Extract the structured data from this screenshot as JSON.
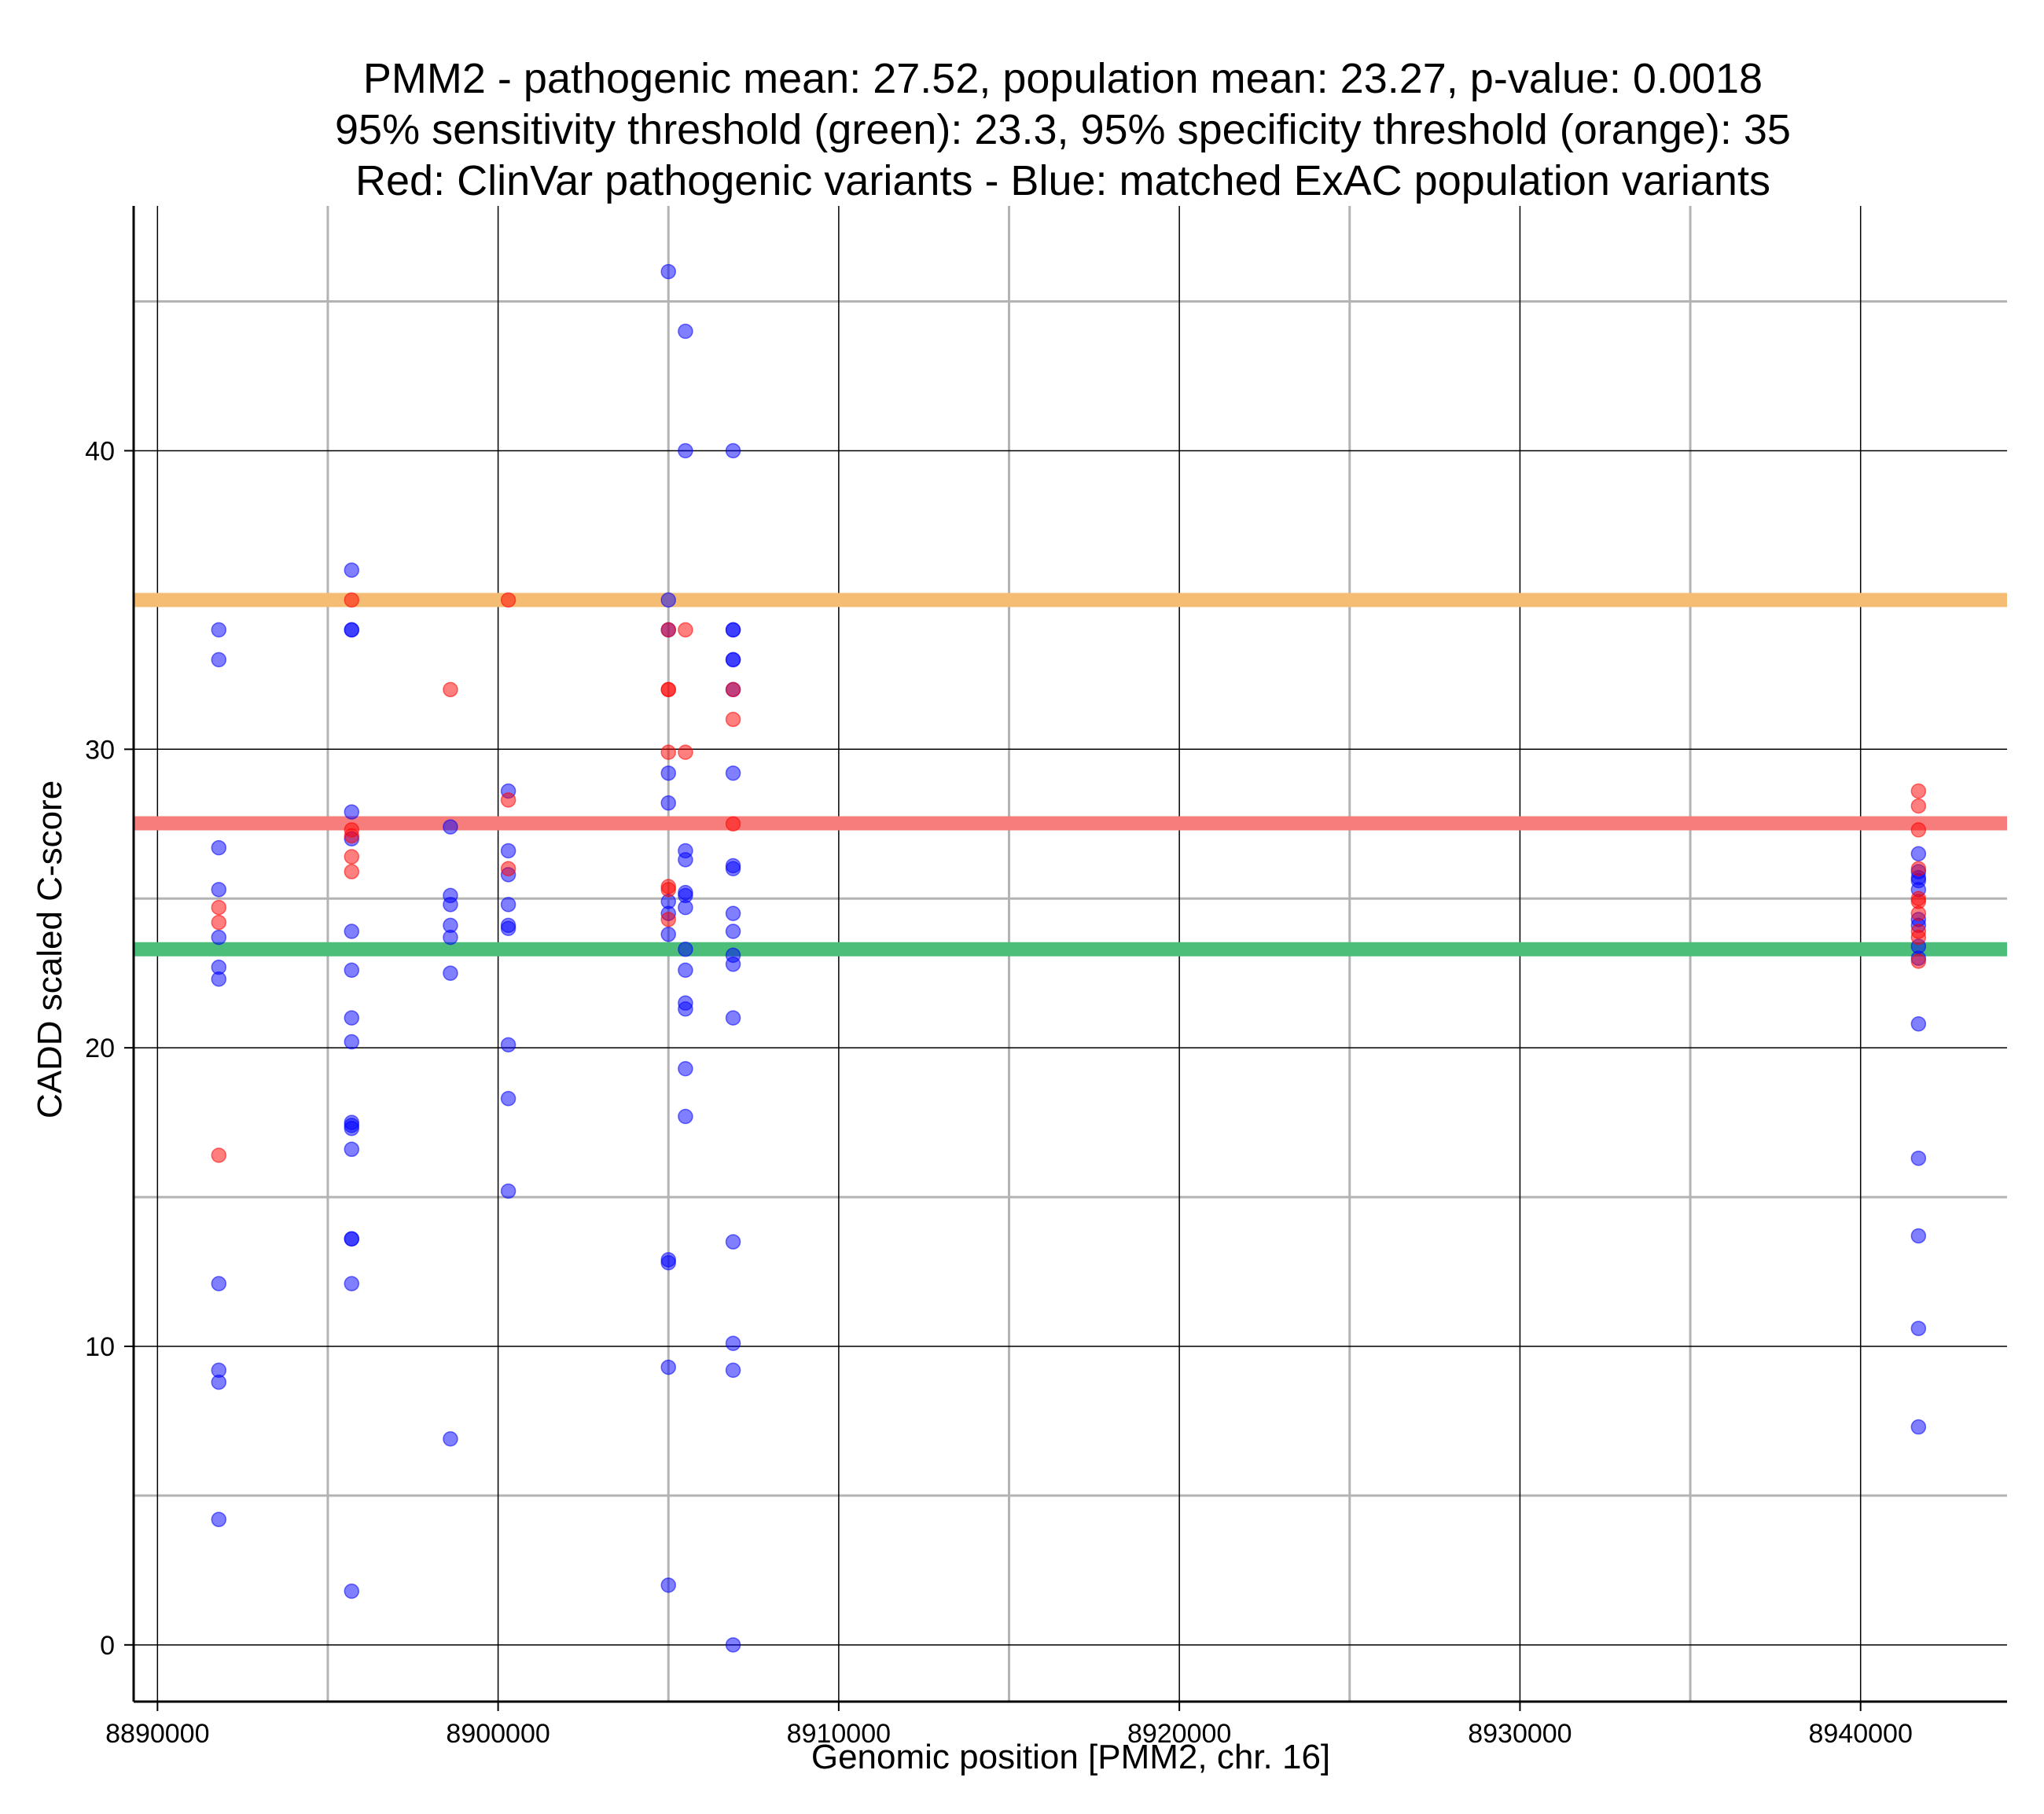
{
  "chart_data": {
    "type": "scatter",
    "title": [
      "PMM2 - pathogenic mean: 27.52, population mean: 23.27, p-value: 0.0018",
      "95% sensitivity threshold (green): 23.3, 95% specificity threshold (orange): 35",
      "Red: ClinVar pathogenic variants - Blue: matched ExAC population variants"
    ],
    "xlabel": "Genomic position [PMM2, chr. 16]",
    "ylabel": "CADD scaled C-score",
    "xlim": [
      8889300,
      8944300
    ],
    "ylim": [
      -1.9,
      48.2
    ],
    "x_ticks": [
      8890000,
      8900000,
      8910000,
      8920000,
      8930000,
      8940000
    ],
    "y_ticks": [
      0,
      10,
      20,
      30,
      40
    ],
    "x_minor_gridlines": [
      8895000,
      8905000,
      8915000,
      8925000,
      8935000
    ],
    "y_minor_gridlines": [
      5,
      15,
      25,
      35,
      45
    ],
    "grid": true,
    "colors": {
      "pathogenic": "#ff0000",
      "population": "#0000ff",
      "sensitivity_line": "#4dbd7a",
      "specificity_line": "#f5bd73",
      "pathogenic_mean_line": "#f77c7c"
    },
    "hlines": [
      {
        "name": "95% specificity threshold",
        "y": 35,
        "color": "#f5bd73"
      },
      {
        "name": "pathogenic mean",
        "y": 27.52,
        "color": "#f77c7c"
      },
      {
        "name": "95% sensitivity threshold",
        "y": 23.3,
        "color": "#4dbd7a"
      }
    ],
    "series": [
      {
        "color": "#0000ff",
        "points": [
          [
            8891800,
            34
          ],
          [
            8891800,
            33
          ],
          [
            8891800,
            26.7
          ],
          [
            8891800,
            25.3
          ],
          [
            8891800,
            23.7
          ],
          [
            8891800,
            22.7
          ],
          [
            8891800,
            22.3
          ],
          [
            8891800,
            12.1
          ],
          [
            8891800,
            9.2
          ],
          [
            8891800,
            8.8
          ],
          [
            8891800,
            4.2
          ],
          [
            8895700,
            36
          ],
          [
            8895700,
            34
          ],
          [
            8895700,
            34
          ],
          [
            8895700,
            27.9
          ],
          [
            8895700,
            27
          ],
          [
            8895700,
            23.9
          ],
          [
            8895700,
            22.6
          ],
          [
            8895700,
            21
          ],
          [
            8895700,
            20.2
          ],
          [
            8895700,
            17.5
          ],
          [
            8895700,
            17.3
          ],
          [
            8895700,
            17.4
          ],
          [
            8895700,
            16.6
          ],
          [
            8895700,
            13.6
          ],
          [
            8895700,
            13.6
          ],
          [
            8895700,
            12.1
          ],
          [
            8895700,
            1.8
          ],
          [
            8898600,
            27.4
          ],
          [
            8898600,
            25.1
          ],
          [
            8898600,
            24.8
          ],
          [
            8898600,
            24.1
          ],
          [
            8898600,
            23.7
          ],
          [
            8898600,
            22.5
          ],
          [
            8898600,
            6.9
          ],
          [
            8900300,
            28.6
          ],
          [
            8900300,
            26.6
          ],
          [
            8900300,
            25.8
          ],
          [
            8900300,
            24.8
          ],
          [
            8900300,
            24.1
          ],
          [
            8900300,
            24
          ],
          [
            8900300,
            20.1
          ],
          [
            8900300,
            18.3
          ],
          [
            8900300,
            15.2
          ],
          [
            8905000,
            46
          ],
          [
            8905000,
            35
          ],
          [
            8905000,
            34
          ],
          [
            8905000,
            29.2
          ],
          [
            8905000,
            28.2
          ],
          [
            8905000,
            24.9
          ],
          [
            8905000,
            24.5
          ],
          [
            8905000,
            23.8
          ],
          [
            8905000,
            12.9
          ],
          [
            8905000,
            12.8
          ],
          [
            8905000,
            9.3
          ],
          [
            8905000,
            2
          ],
          [
            8905500,
            44
          ],
          [
            8905500,
            40
          ],
          [
            8905500,
            26.6
          ],
          [
            8905500,
            26.3
          ],
          [
            8905500,
            25.2
          ],
          [
            8905500,
            25.1
          ],
          [
            8905500,
            24.7
          ],
          [
            8905500,
            23.3
          ],
          [
            8905500,
            22.6
          ],
          [
            8905500,
            21.5
          ],
          [
            8905500,
            21.3
          ],
          [
            8905500,
            19.3
          ],
          [
            8905500,
            17.7
          ],
          [
            8906900,
            40
          ],
          [
            8906900,
            34
          ],
          [
            8906900,
            34
          ],
          [
            8906900,
            33
          ],
          [
            8906900,
            33
          ],
          [
            8906900,
            32
          ],
          [
            8906900,
            29.2
          ],
          [
            8906900,
            26.1
          ],
          [
            8906900,
            26
          ],
          [
            8906900,
            24.5
          ],
          [
            8906900,
            23.9
          ],
          [
            8906900,
            23.1
          ],
          [
            8906900,
            22.8
          ],
          [
            8906900,
            21
          ],
          [
            8906900,
            13.5
          ],
          [
            8906900,
            10.1
          ],
          [
            8906900,
            9.2
          ],
          [
            8906900,
            0
          ],
          [
            8941700,
            26.5
          ],
          [
            8941700,
            25.9
          ],
          [
            8941700,
            25.7
          ],
          [
            8941700,
            25.6
          ],
          [
            8941700,
            25.3
          ],
          [
            8941700,
            24.3
          ],
          [
            8941700,
            24.1
          ],
          [
            8941700,
            23.4
          ],
          [
            8941700,
            23
          ],
          [
            8941700,
            20.8
          ],
          [
            8941700,
            16.3
          ],
          [
            8941700,
            13.7
          ],
          [
            8941700,
            10.6
          ],
          [
            8941700,
            7.3
          ]
        ]
      },
      {
        "color": "#ff0000",
        "points": [
          [
            8891800,
            24.7
          ],
          [
            8891800,
            24.2
          ],
          [
            8891800,
            16.4
          ],
          [
            8895700,
            35
          ],
          [
            8895700,
            27.3
          ],
          [
            8895700,
            27.1
          ],
          [
            8895700,
            26.4
          ],
          [
            8895700,
            25.9
          ],
          [
            8898600,
            32
          ],
          [
            8900300,
            35
          ],
          [
            8900300,
            28.3
          ],
          [
            8900300,
            26
          ],
          [
            8905000,
            34
          ],
          [
            8905000,
            32
          ],
          [
            8905000,
            32
          ],
          [
            8905000,
            29.9
          ],
          [
            8905000,
            25.4
          ],
          [
            8905000,
            25.3
          ],
          [
            8905000,
            24.3
          ],
          [
            8905500,
            34
          ],
          [
            8905500,
            29.9
          ],
          [
            8906900,
            32
          ],
          [
            8906900,
            31
          ],
          [
            8906900,
            27.5
          ],
          [
            8941700,
            28.6
          ],
          [
            8941700,
            28.1
          ],
          [
            8941700,
            27.3
          ],
          [
            8941700,
            26
          ],
          [
            8941700,
            25
          ],
          [
            8941700,
            24.9
          ],
          [
            8941700,
            24.5
          ],
          [
            8941700,
            23.9
          ],
          [
            8941700,
            23.7
          ],
          [
            8941700,
            22.9
          ]
        ]
      }
    ]
  }
}
